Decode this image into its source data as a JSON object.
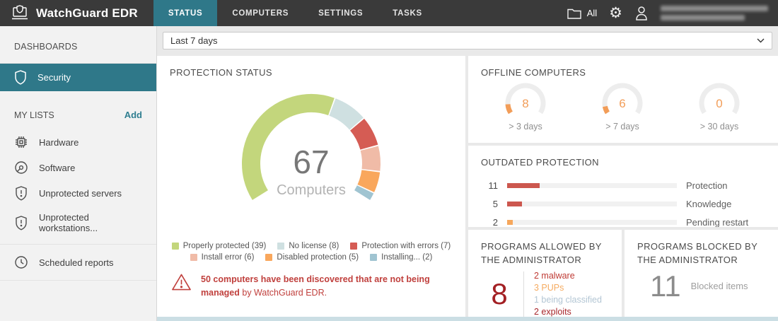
{
  "topbar": {
    "brand": "WatchGuard EDR",
    "tabs": [
      {
        "label": "STATUS",
        "active": true
      },
      {
        "label": "COMPUTERS",
        "active": false
      },
      {
        "label": "SETTINGS",
        "active": false
      },
      {
        "label": "TASKS",
        "active": false
      }
    ],
    "filter_label": "All"
  },
  "sidebar": {
    "dashboards_header": "DASHBOARDS",
    "dashboard_items": [
      {
        "label": "Security",
        "active": true
      }
    ],
    "my_lists_header": "MY LISTS",
    "add_label": "Add",
    "items": [
      {
        "icon": "hardware-icon",
        "label": "Hardware"
      },
      {
        "icon": "software-disc-icon",
        "label": "Software"
      },
      {
        "icon": "shield-alert-icon",
        "label": "Unprotected servers"
      },
      {
        "icon": "shield-alert-icon",
        "label": "Unprotected workstations..."
      },
      {
        "icon": "clock-icon",
        "label": "Scheduled reports"
      }
    ]
  },
  "filters": {
    "date_range": "Last 7 days"
  },
  "panels": {
    "protection_status": {
      "title": "PROTECTION STATUS",
      "warning_bold": "50 computers have been discovered that are not being managed",
      "warning_rest": " by WatchGuard EDR."
    },
    "offline": {
      "title": "OFFLINE COMPUTERS"
    },
    "outdated": {
      "title": "OUTDATED PROTECTION"
    },
    "allowed": {
      "title": "PROGRAMS ALLOWED BY THE ADMINISTRATOR"
    },
    "blocked": {
      "title": "PROGRAMS BLOCKED BY THE ADMINISTRATOR"
    }
  },
  "colors": {
    "accent_teal": "#2f7889",
    "warning_red": "#c0403d",
    "offline_orange": "#f29d58"
  },
  "chart_data": [
    {
      "id": "protection_status",
      "type": "donut",
      "title": "PROTECTION STATUS",
      "total": 67,
      "center_value": "67",
      "center_label": "Computers",
      "start_angle": 147.5,
      "sweep": 245,
      "legend_position": "bottom",
      "segments": [
        {
          "label": "Properly protected (39)",
          "name": "Properly protected",
          "value": 39,
          "color": "#c3d67c"
        },
        {
          "label": "No license (8)",
          "name": "No license",
          "value": 8,
          "color": "#cfe0e1"
        },
        {
          "label": "Protection with errors (7)",
          "name": "Protection with errors",
          "value": 7,
          "color": "#d55c54"
        },
        {
          "label": "Install error (6)",
          "name": "Install error",
          "value": 6,
          "color": "#f0bba7"
        },
        {
          "label": "Disabled protection (5)",
          "name": "Disabled protection",
          "value": 5,
          "color": "#f9a75c"
        },
        {
          "label": "Installing... (2)",
          "name": "Installing...",
          "value": 2,
          "color": "#a0c4d1"
        }
      ]
    },
    {
      "id": "offline_computers",
      "type": "gauge",
      "title": "OFFLINE COMPUTERS",
      "max": 67,
      "color": "#f29d58",
      "track_color": "#ededed",
      "items": [
        {
          "label": "> 3 days",
          "value": 8
        },
        {
          "label": "> 7 days",
          "value": 6
        },
        {
          "label": "> 30 days",
          "value": 0
        }
      ]
    },
    {
      "id": "outdated_protection",
      "type": "bar",
      "title": "OUTDATED PROTECTION",
      "orientation": "horizontal",
      "categories": [
        "Protection",
        "Knowledge",
        "Pending restart"
      ],
      "values": [
        11,
        5,
        2
      ],
      "colors": [
        "#cc574e",
        "#cc574e",
        "#f6a75c"
      ],
      "xlim": [
        0,
        58
      ],
      "grid": false
    },
    {
      "id": "programs_allowed",
      "type": "kpi",
      "title": "PROGRAMS ALLOWED BY THE ADMINISTRATOR",
      "value": 8,
      "value_color": "#a32024",
      "breakdown": [
        {
          "label": "2 malware",
          "value": 2,
          "name": "malware",
          "color": "#bf3a34"
        },
        {
          "label": "3 PUPs",
          "value": 3,
          "name": "PUPs",
          "color": "#f5ab61"
        },
        {
          "label": "1 being classified",
          "value": 1,
          "name": "being classified",
          "color": "#b3c6d4"
        },
        {
          "label": "2 exploits",
          "value": 2,
          "name": "exploits",
          "color": "#a8262b"
        }
      ]
    },
    {
      "id": "programs_blocked",
      "type": "kpi",
      "title": "PROGRAMS BLOCKED BY THE ADMINISTRATOR",
      "value": 11,
      "value_color": "#8c8c8c",
      "label": "Blocked items"
    }
  ]
}
